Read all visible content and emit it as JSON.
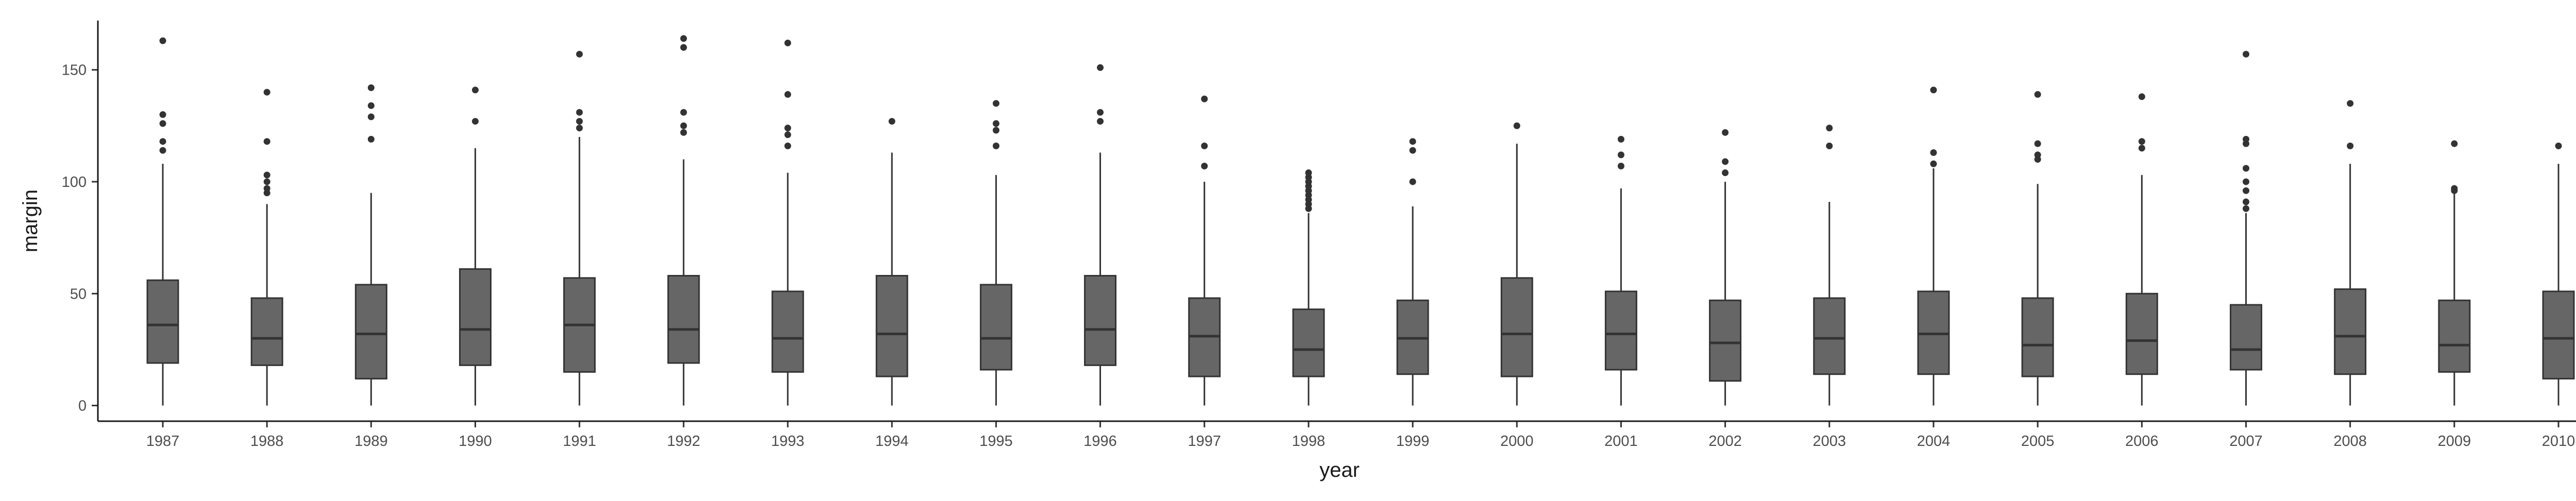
{
  "chart_data": {
    "type": "boxplot",
    "xlabel": "year",
    "ylabel": "margin",
    "ylim": [
      -7,
      172
    ],
    "yticks": [
      0,
      50,
      100,
      150
    ],
    "categories": [
      "1987",
      "1988",
      "1989",
      "1990",
      "1991",
      "1992",
      "1993",
      "1994",
      "1995",
      "1996",
      "1997",
      "1998",
      "1999",
      "2000",
      "2001",
      "2002",
      "2003",
      "2004",
      "2005",
      "2006",
      "2007",
      "2008",
      "2009",
      "2010"
    ],
    "boxes": [
      {
        "low": 0,
        "q1": 19,
        "median": 36,
        "q3": 56,
        "high": 108,
        "outliers": [
          114,
          118,
          126,
          130,
          163
        ]
      },
      {
        "low": 0,
        "q1": 18,
        "median": 30,
        "q3": 48,
        "high": 90,
        "outliers": [
          95,
          97,
          100,
          103,
          118,
          140
        ]
      },
      {
        "low": 0,
        "q1": 12,
        "median": 32,
        "q3": 54,
        "high": 95,
        "outliers": [
          119,
          129,
          134,
          142
        ]
      },
      {
        "low": 0,
        "q1": 18,
        "median": 34,
        "q3": 61,
        "high": 115,
        "outliers": [
          127,
          141
        ]
      },
      {
        "low": 0,
        "q1": 15,
        "median": 36,
        "q3": 57,
        "high": 120,
        "outliers": [
          124,
          127,
          131,
          157
        ]
      },
      {
        "low": 0,
        "q1": 19,
        "median": 34,
        "q3": 58,
        "high": 110,
        "outliers": [
          122,
          125,
          131,
          160,
          164
        ]
      },
      {
        "low": 0,
        "q1": 15,
        "median": 30,
        "q3": 51,
        "high": 104,
        "outliers": [
          116,
          121,
          124,
          139,
          162
        ]
      },
      {
        "low": 0,
        "q1": 13,
        "median": 32,
        "q3": 58,
        "high": 113,
        "outliers": [
          127
        ]
      },
      {
        "low": 0,
        "q1": 16,
        "median": 30,
        "q3": 54,
        "high": 103,
        "outliers": [
          116,
          123,
          126,
          135
        ]
      },
      {
        "low": 0,
        "q1": 18,
        "median": 34,
        "q3": 58,
        "high": 113,
        "outliers": [
          127,
          131,
          151
        ]
      },
      {
        "low": 0,
        "q1": 13,
        "median": 31,
        "q3": 48,
        "high": 100,
        "outliers": [
          107,
          116,
          137
        ]
      },
      {
        "low": 0,
        "q1": 13,
        "median": 25,
        "q3": 43,
        "high": 86,
        "outliers": [
          88,
          90,
          92,
          94,
          96,
          98,
          100,
          102,
          104
        ]
      },
      {
        "low": 0,
        "q1": 14,
        "median": 30,
        "q3": 47,
        "high": 89,
        "outliers": [
          100,
          114,
          118
        ]
      },
      {
        "low": 0,
        "q1": 13,
        "median": 32,
        "q3": 57,
        "high": 117,
        "outliers": [
          125
        ]
      },
      {
        "low": 0,
        "q1": 16,
        "median": 32,
        "q3": 51,
        "high": 97,
        "outliers": [
          107,
          112,
          119
        ]
      },
      {
        "low": 0,
        "q1": 11,
        "median": 28,
        "q3": 47,
        "high": 100,
        "outliers": [
          104,
          109,
          122
        ]
      },
      {
        "low": 0,
        "q1": 14,
        "median": 30,
        "q3": 48,
        "high": 91,
        "outliers": [
          116,
          124
        ]
      },
      {
        "low": 0,
        "q1": 14,
        "median": 32,
        "q3": 51,
        "high": 106,
        "outliers": [
          108,
          113,
          141
        ]
      },
      {
        "low": 0,
        "q1": 13,
        "median": 27,
        "q3": 48,
        "high": 99,
        "outliers": [
          110,
          112,
          117,
          139
        ]
      },
      {
        "low": 0,
        "q1": 14,
        "median": 29,
        "q3": 50,
        "high": 103,
        "outliers": [
          115,
          118,
          138
        ]
      },
      {
        "low": 0,
        "q1": 16,
        "median": 25,
        "q3": 45,
        "high": 86,
        "outliers": [
          88,
          91,
          96,
          100,
          106,
          117,
          119,
          157
        ]
      },
      {
        "low": 0,
        "q1": 14,
        "median": 31,
        "q3": 52,
        "high": 108,
        "outliers": [
          116,
          135
        ]
      },
      {
        "low": 0,
        "q1": 15,
        "median": 27,
        "q3": 47,
        "high": 95,
        "outliers": [
          96,
          97,
          117
        ]
      },
      {
        "low": 0,
        "q1": 12,
        "median": 30,
        "q3": 51,
        "high": 108,
        "outliers": [
          116
        ]
      }
    ]
  }
}
